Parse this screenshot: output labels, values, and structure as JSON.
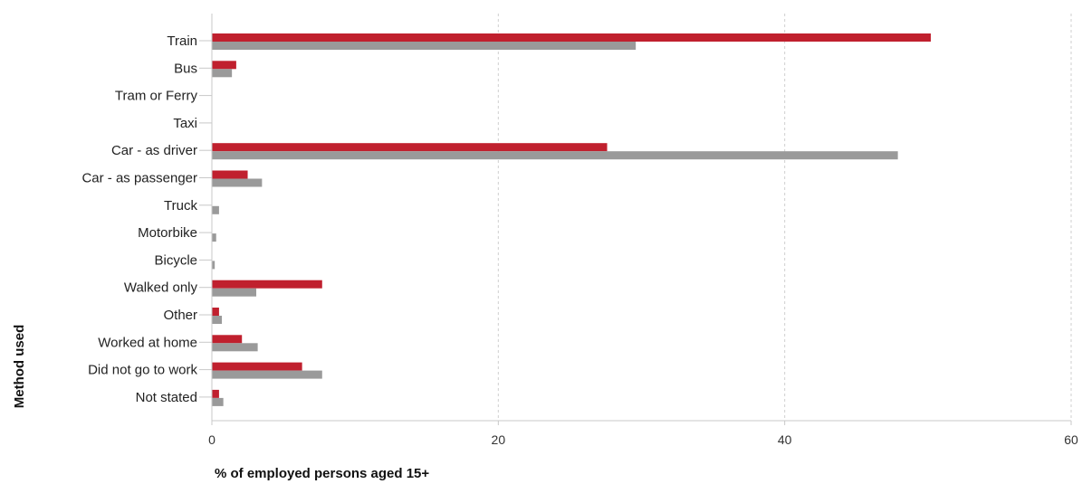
{
  "chart_data": {
    "type": "bar",
    "orientation": "horizontal",
    "categories": [
      "Train",
      "Bus",
      "Tram or Ferry",
      "Taxi",
      "Car - as driver",
      "Car - as passenger",
      "Truck",
      "Motorbike",
      "Bicycle",
      "Walked only",
      "Other",
      "Worked at home",
      "Did not go to work",
      "Not stated"
    ],
    "series": [
      {
        "color": "#c0202e",
        "values": [
          50.2,
          1.7,
          0.0,
          0.0,
          27.6,
          2.5,
          0.0,
          0.0,
          0.0,
          7.7,
          0.5,
          2.1,
          6.3,
          0.5
        ]
      },
      {
        "color": "#9a9a9a",
        "values": [
          29.6,
          1.4,
          0.0,
          0.0,
          47.9,
          3.5,
          0.5,
          0.3,
          0.2,
          3.1,
          0.7,
          3.2,
          7.7,
          0.8
        ]
      }
    ],
    "xlabel": "% of employed persons aged 15+",
    "ylabel": "Method used",
    "xlim": [
      0,
      60
    ],
    "xticks": [
      0,
      20,
      40,
      60
    ],
    "grid": "vertical-dashed"
  }
}
